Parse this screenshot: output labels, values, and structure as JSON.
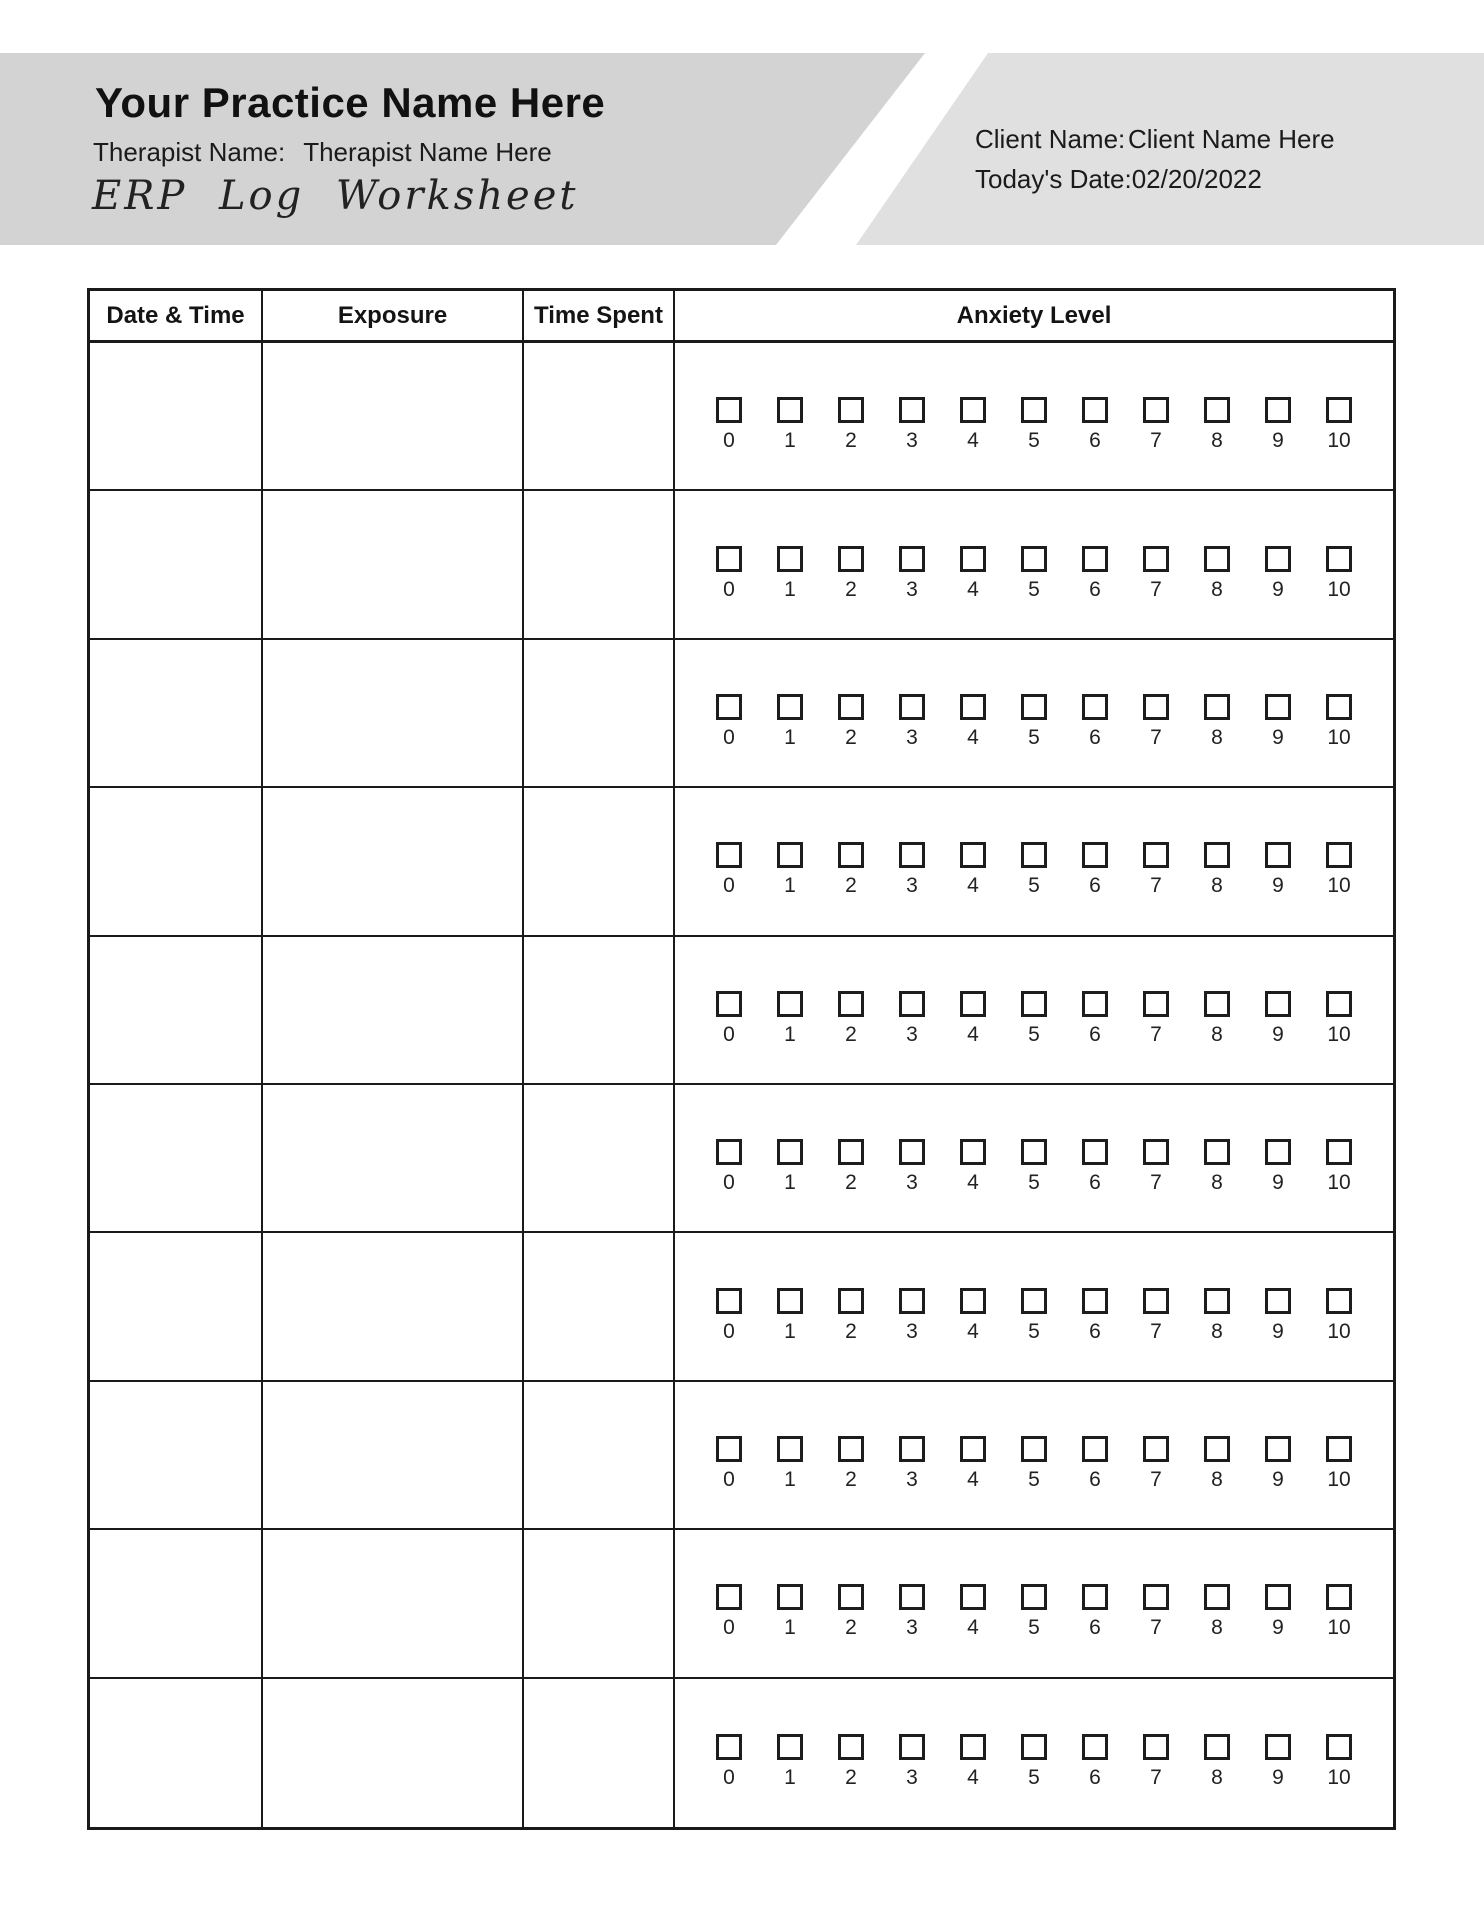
{
  "header": {
    "practice_name": "Your Practice Name Here",
    "therapist_label": "Therapist Name:",
    "therapist_value": "Therapist Name Here",
    "worksheet_title": "ERP Log Worksheet",
    "client_label": "Client Name:",
    "client_value": "Client Name Here",
    "date_label": "Today's Date:",
    "date_value": "02/20/2022"
  },
  "colors": {
    "banner_left": "#d3d3d3",
    "banner_right": "#e0e0e0",
    "table_border": "#1a1a1a",
    "text": "#161616"
  },
  "table": {
    "columns": [
      "Date & Time",
      "Exposure",
      "Time Spent",
      "Anxiety Level"
    ],
    "anxiety_scale": [
      "0",
      "1",
      "2",
      "3",
      "4",
      "5",
      "6",
      "7",
      "8",
      "9",
      "10"
    ],
    "row_count": 10,
    "rows": [
      {
        "date_time": "",
        "exposure": "",
        "time_spent": "",
        "anxiety_selected": null
      },
      {
        "date_time": "",
        "exposure": "",
        "time_spent": "",
        "anxiety_selected": null
      },
      {
        "date_time": "",
        "exposure": "",
        "time_spent": "",
        "anxiety_selected": null
      },
      {
        "date_time": "",
        "exposure": "",
        "time_spent": "",
        "anxiety_selected": null
      },
      {
        "date_time": "",
        "exposure": "",
        "time_spent": "",
        "anxiety_selected": null
      },
      {
        "date_time": "",
        "exposure": "",
        "time_spent": "",
        "anxiety_selected": null
      },
      {
        "date_time": "",
        "exposure": "",
        "time_spent": "",
        "anxiety_selected": null
      },
      {
        "date_time": "",
        "exposure": "",
        "time_spent": "",
        "anxiety_selected": null
      },
      {
        "date_time": "",
        "exposure": "",
        "time_spent": "",
        "anxiety_selected": null
      },
      {
        "date_time": "",
        "exposure": "",
        "time_spent": "",
        "anxiety_selected": null
      }
    ]
  }
}
